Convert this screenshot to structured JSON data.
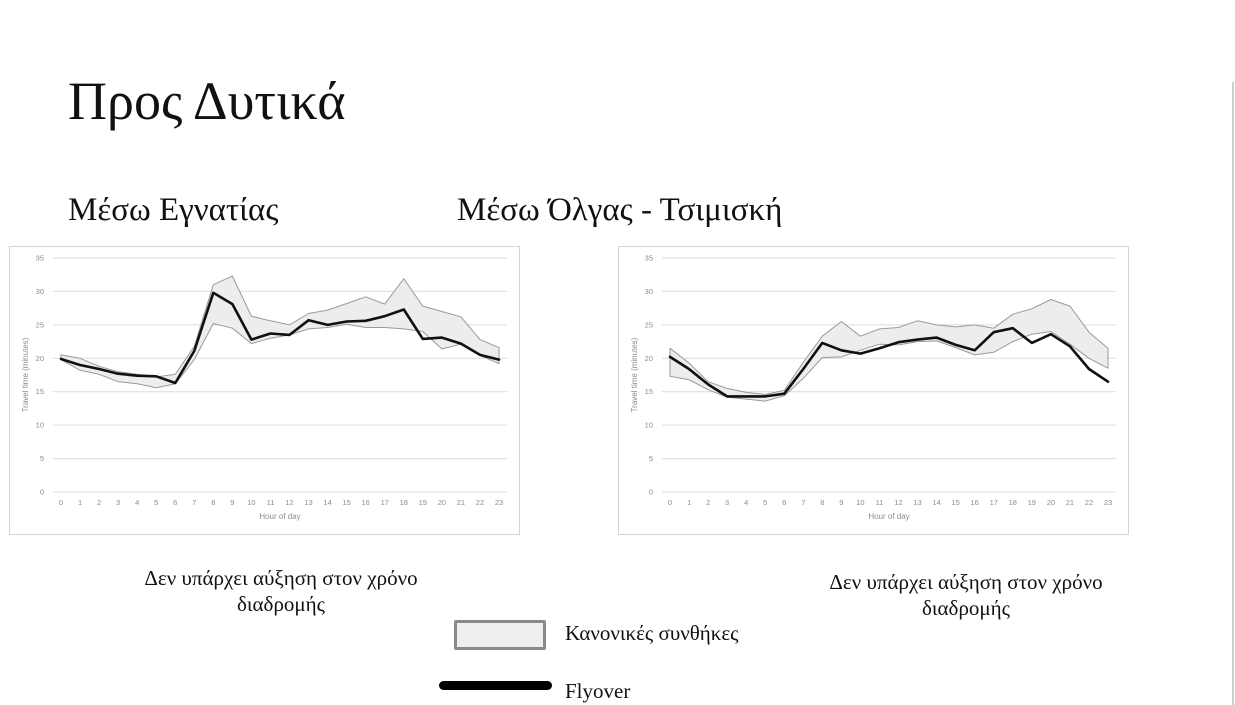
{
  "page": {
    "title": "Προς Δυτικά",
    "left_subtitle": "Μέσω Εγνατίας",
    "right_subtitle": "Μέσω Όλγας - Τσιμισκή",
    "left_caption": "Δεν υπάρχει αύξηση στον χρόνο διαδρομής",
    "right_caption": "Δεν υπάρχει αύξηση στον χρόνο διαδρομής",
    "legend": {
      "band_label": "Κανονικές συνθήκες",
      "line_label": "Flyover"
    }
  },
  "chart_data": [
    {
      "type": "line",
      "title": "",
      "xlabel": "Hour of day",
      "ylabel": "Travel time (minutes)",
      "x": [
        0,
        1,
        2,
        3,
        4,
        5,
        6,
        7,
        8,
        9,
        10,
        11,
        12,
        13,
        14,
        15,
        16,
        17,
        18,
        19,
        20,
        21,
        22,
        23
      ],
      "ylim": [
        0,
        35
      ],
      "yticks": [
        0,
        5,
        10,
        15,
        20,
        25,
        30,
        35
      ],
      "grid": true,
      "band": {
        "name": "Κανονικές συνθήκες",
        "upper": [
          20.5,
          20.0,
          18.8,
          18.0,
          17.6,
          17.2,
          17.6,
          21.8,
          31.0,
          32.3,
          26.3,
          25.6,
          25.0,
          26.7,
          27.2,
          28.2,
          29.2,
          28.1,
          31.9,
          27.8,
          27.0,
          26.2,
          22.8,
          21.6
        ],
        "lower": [
          19.8,
          18.2,
          17.6,
          16.5,
          16.2,
          15.6,
          16.2,
          19.8,
          25.2,
          24.5,
          22.2,
          23.0,
          23.5,
          24.4,
          24.6,
          25.1,
          24.6,
          24.6,
          24.4,
          24.0,
          21.4,
          22.1,
          20.4,
          19.2
        ]
      },
      "series": [
        {
          "name": "Flyover",
          "values": [
            19.9,
            19.0,
            18.4,
            17.7,
            17.4,
            17.3,
            16.3,
            21.1,
            29.8,
            28.1,
            22.8,
            23.7,
            23.5,
            25.7,
            25.0,
            25.5,
            25.6,
            26.3,
            27.3,
            22.9,
            23.1,
            22.2,
            20.5,
            19.8
          ]
        }
      ]
    },
    {
      "type": "line",
      "title": "",
      "xlabel": "Hour of day",
      "ylabel": "Travel time (minutes)",
      "x": [
        0,
        1,
        2,
        3,
        4,
        5,
        6,
        7,
        8,
        9,
        10,
        11,
        12,
        13,
        14,
        15,
        16,
        17,
        18,
        19,
        20,
        21,
        22,
        23
      ],
      "ylim": [
        0,
        35
      ],
      "yticks": [
        0,
        5,
        10,
        15,
        20,
        25,
        30,
        35
      ],
      "grid": true,
      "band": {
        "name": "Κανονικές συνθήκες",
        "upper": [
          21.5,
          19.3,
          16.5,
          15.5,
          14.9,
          14.6,
          15.2,
          19.4,
          23.3,
          25.5,
          23.3,
          24.4,
          24.6,
          25.6,
          25.0,
          24.7,
          25.0,
          24.5,
          26.6,
          27.4,
          28.8,
          27.8,
          23.9,
          21.5
        ],
        "lower": [
          17.3,
          16.8,
          15.3,
          14.2,
          13.9,
          13.6,
          14.4,
          17.0,
          20.1,
          20.2,
          21.2,
          22.1,
          22.0,
          22.5,
          22.6,
          21.6,
          20.5,
          20.9,
          22.5,
          23.6,
          24.0,
          22.1,
          20.0,
          18.5
        ]
      },
      "series": [
        {
          "name": "Flyover",
          "values": [
            20.2,
            18.4,
            16.1,
            14.3,
            14.3,
            14.3,
            14.7,
            18.4,
            22.3,
            21.2,
            20.7,
            21.5,
            22.4,
            22.8,
            23.1,
            22.0,
            21.2,
            23.9,
            24.5,
            22.3,
            23.6,
            21.8,
            18.4,
            16.5
          ]
        }
      ]
    }
  ]
}
